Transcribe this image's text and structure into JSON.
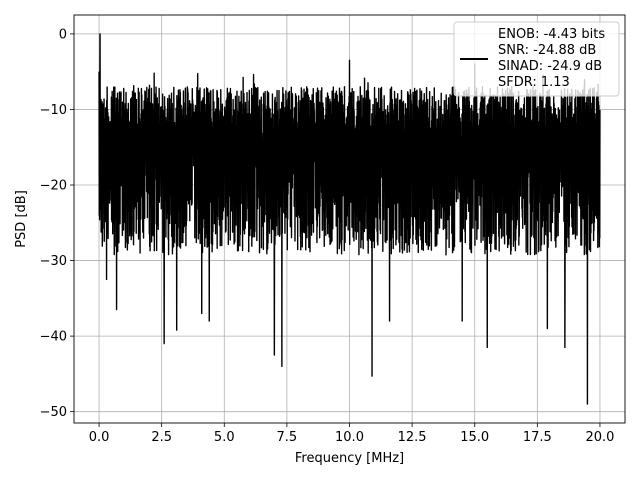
{
  "chart_data": {
    "type": "line",
    "xlabel": "Frequency [MHz]",
    "ylabel": "PSD [dB]",
    "xlim": [
      -1.0,
      21.0
    ],
    "ylim": [
      -51.5,
      2.5
    ],
    "xticks": [
      0.0,
      2.5,
      5.0,
      7.5,
      10.0,
      12.5,
      15.0,
      17.5,
      20.0
    ],
    "xtick_labels": [
      "0.0",
      "2.5",
      "5.0",
      "7.5",
      "10.0",
      "12.5",
      "15.0",
      "17.5",
      "20.0"
    ],
    "yticks": [
      0,
      -10,
      -20,
      -30,
      -40,
      -50
    ],
    "ytick_labels": [
      "0",
      "−10",
      "−20",
      "−30",
      "−40",
      "−50"
    ],
    "grid": true,
    "legend_position": "top-right",
    "line_color": "#000000",
    "series": [
      {
        "name": "ENOB: -4.43 bits\nSNR: -24.88 dB\nSINAD: -24.9 dB\nSFDR: 1.13",
        "x_start": 0.0,
        "x_end": 20.0,
        "noise_floor_db": -15,
        "envelope_max_db": -7,
        "envelope_min_db": -30,
        "peaks": [
          {
            "x": 0.04,
            "y": 0.0
          },
          {
            "x": 0.0,
            "y": -5.0
          },
          {
            "x": 2.2,
            "y": -5.2
          },
          {
            "x": 10.0,
            "y": -3.5
          },
          {
            "x": 15.0,
            "y": -4.0
          }
        ],
        "dips": [
          {
            "x": 0.3,
            "y": -32.5
          },
          {
            "x": 0.7,
            "y": -36.5
          },
          {
            "x": 2.6,
            "y": -41.0
          },
          {
            "x": 3.1,
            "y": -39.2
          },
          {
            "x": 4.1,
            "y": -37.0
          },
          {
            "x": 4.4,
            "y": -38.0
          },
          {
            "x": 7.0,
            "y": -42.5
          },
          {
            "x": 7.3,
            "y": -44.0
          },
          {
            "x": 10.9,
            "y": -45.3
          },
          {
            "x": 11.6,
            "y": -38.0
          },
          {
            "x": 14.5,
            "y": -38.0
          },
          {
            "x": 15.5,
            "y": -41.5
          },
          {
            "x": 17.9,
            "y": -39.0
          },
          {
            "x": 18.6,
            "y": -41.5
          },
          {
            "x": 19.5,
            "y": -49.0
          }
        ]
      }
    ]
  }
}
